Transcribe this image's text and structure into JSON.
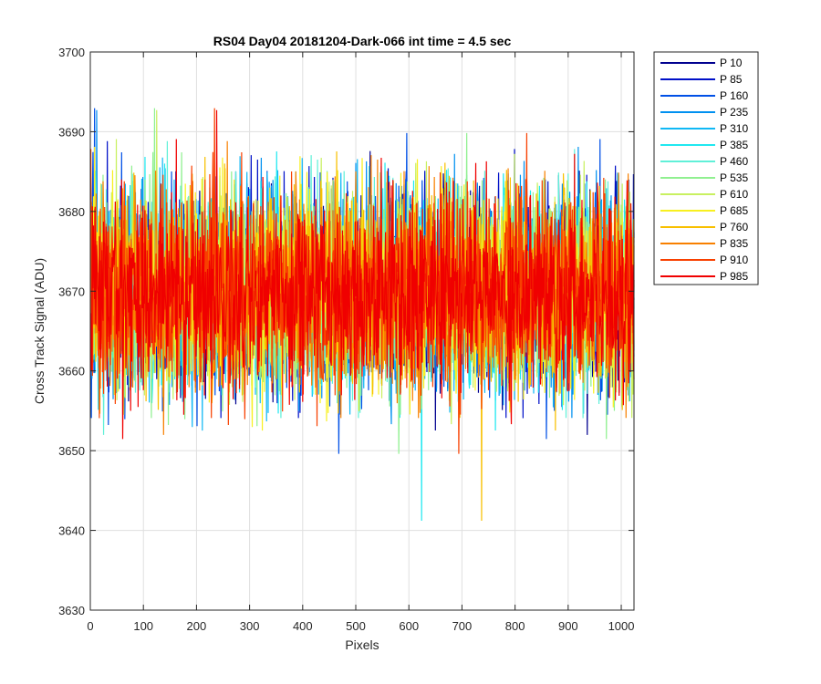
{
  "chart_data": {
    "type": "line",
    "title": "RS04 Day04 20181204-Dark-066 int time = 4.5 sec",
    "xlabel": "Pixels",
    "ylabel": "Cross Track Signal (ADU)",
    "xlim": [
      0,
      1024
    ],
    "ylim": [
      3630,
      3700
    ],
    "xticks": [
      0,
      100,
      200,
      300,
      400,
      500,
      600,
      700,
      800,
      900,
      1000
    ],
    "yticks": [
      3630,
      3640,
      3650,
      3660,
      3670,
      3680,
      3690,
      3700
    ],
    "grid": true,
    "legend_position": "outside-top-right",
    "signal_mean": 3670,
    "signal_spread": 6,
    "series": [
      {
        "name": "P 10",
        "color": "#00008f"
      },
      {
        "name": "P 85",
        "color": "#0010c8"
      },
      {
        "name": "P 160",
        "color": "#0050e6"
      },
      {
        "name": "P 235",
        "color": "#0090f0"
      },
      {
        "name": "P 310",
        "color": "#10b8f5"
      },
      {
        "name": "P 385",
        "color": "#20e8f0"
      },
      {
        "name": "P 460",
        "color": "#60f0d8"
      },
      {
        "name": "P 535",
        "color": "#90f090"
      },
      {
        "name": "P 610",
        "color": "#c8f060"
      },
      {
        "name": "P 685",
        "color": "#f8f020"
      },
      {
        "name": "P 760",
        "color": "#f8c000"
      },
      {
        "name": "P 835",
        "color": "#f88000"
      },
      {
        "name": "P 910",
        "color": "#f84000"
      },
      {
        "name": "P 985",
        "color": "#f00000"
      }
    ]
  }
}
